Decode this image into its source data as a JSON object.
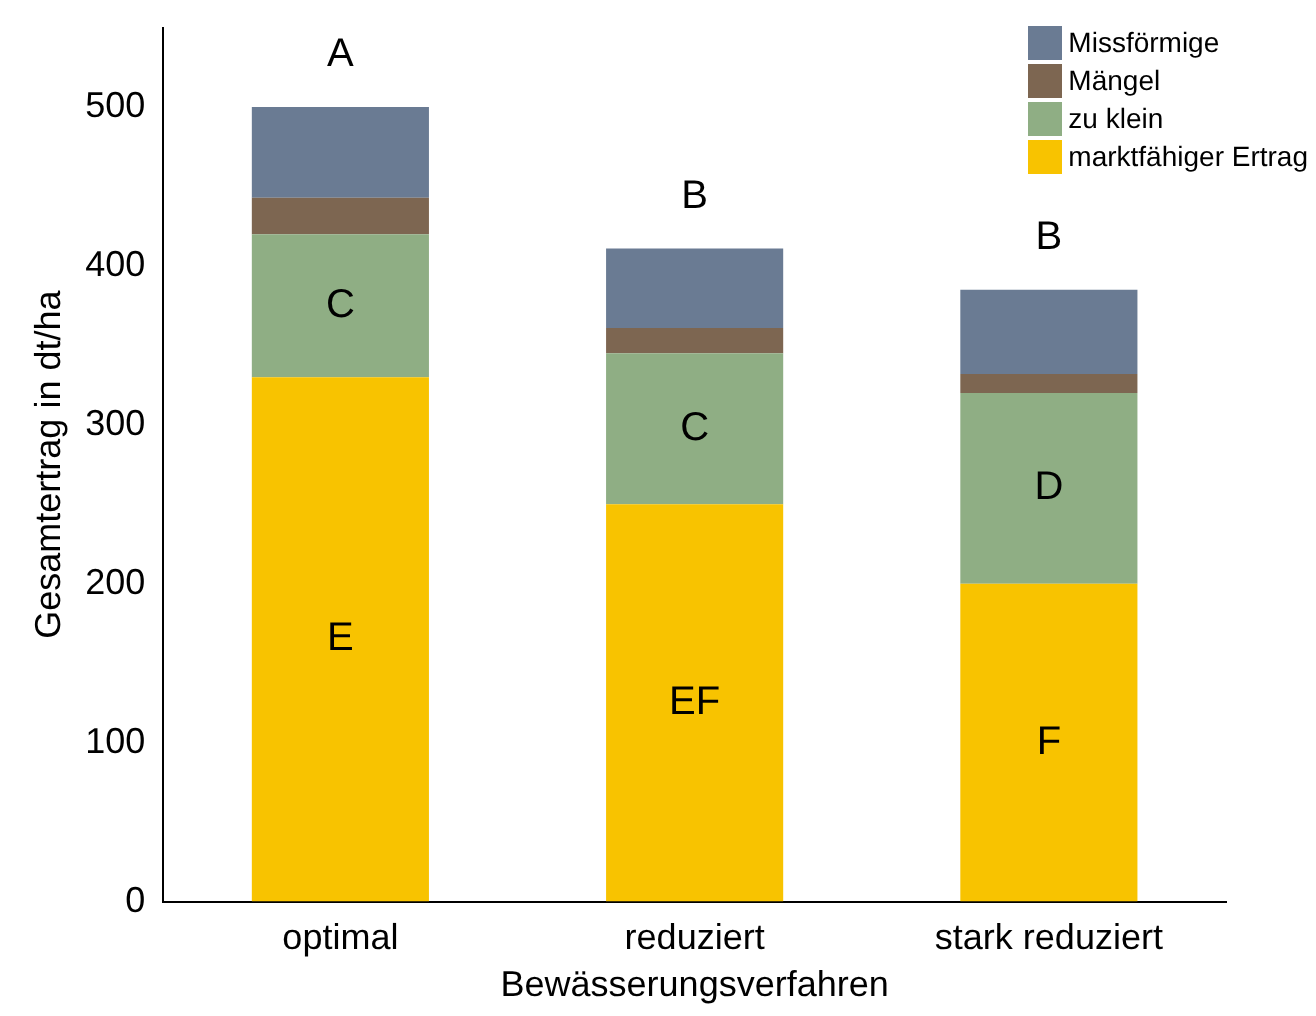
{
  "chart_data": {
    "type": "bar",
    "stacked": true,
    "xlabel": "Bewässerungsverfahren",
    "ylabel": "Gesamtertrag in dt/ha",
    "categories": [
      "optimal",
      "reduziert",
      "stark reduziert"
    ],
    "series": [
      {
        "name": "marktfähiger Ertrag",
        "color": "#f8c300",
        "values": [
          330,
          250,
          200
        ]
      },
      {
        "name": "zu klein",
        "color": "#8fae84",
        "values": [
          90,
          95,
          120
        ]
      },
      {
        "name": "Mängel",
        "color": "#7d6651",
        "values": [
          23,
          16,
          12
        ]
      },
      {
        "name": "Missförmige",
        "color": "#6a7b93",
        "values": [
          57,
          50,
          53
        ]
      }
    ],
    "ylim": [
      0,
      550
    ],
    "yticks": [
      0,
      100,
      200,
      300,
      400,
      500
    ],
    "grid": false,
    "legend": "top right",
    "annotations": [
      "A",
      "B",
      "B",
      "C",
      "C",
      "D",
      "E",
      "EF",
      "F"
    ]
  }
}
